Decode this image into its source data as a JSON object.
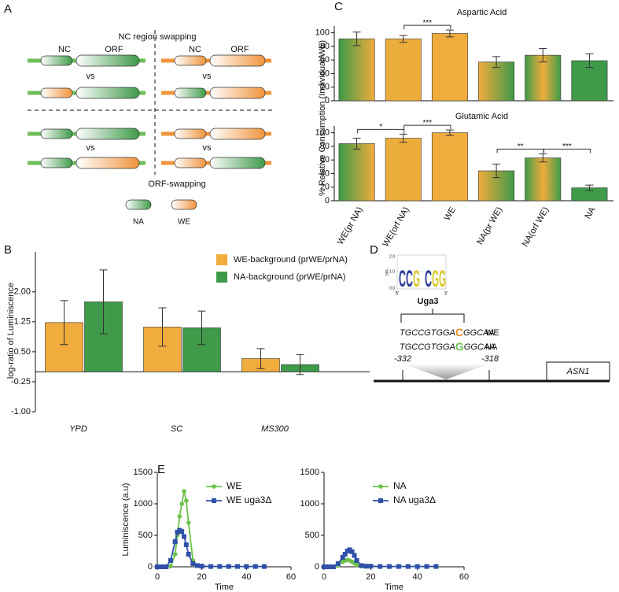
{
  "panel_labels": [
    "A",
    "B",
    "C",
    "D",
    "E"
  ],
  "diagram_a": {
    "top_title": "NC region swapping",
    "part_labels": [
      "NC",
      "ORF",
      "NC",
      "ORF"
    ],
    "vs": [
      "vs",
      "vs",
      "vs",
      "vs"
    ],
    "bottom_title": "ORF-swapping",
    "legend": [
      "NA",
      "WE"
    ]
  },
  "chart_data": [
    {
      "type": "bar",
      "ylabel": "log-ratio of Luminiscence",
      "categories": [
        "YPD",
        "SC",
        "MS300"
      ],
      "series": [
        {
          "name": "WE-background (prWE/prNA)",
          "color": "#f0ac3c",
          "values": [
            1.23,
            1.12,
            0.33
          ],
          "errors": [
            0.55,
            0.48,
            0.25
          ]
        },
        {
          "name": "NA-background (prWE/prNA)",
          "color": "#3f9a49",
          "values": [
            1.75,
            1.1,
            0.18
          ],
          "errors": [
            0.8,
            0.42,
            0.25
          ]
        }
      ],
      "ylim": [
        -1,
        3
      ],
      "yticks": [
        {
          "value": -1,
          "label": "-1.00"
        },
        {
          "value": -0.25,
          "label": "-0.25"
        },
        {
          "value": 0.5,
          "label": "0.50"
        },
        {
          "value": 1.25,
          "label": "1.25"
        },
        {
          "value": 2,
          "label": "2.00"
        }
      ]
    },
    {
      "type": "bar",
      "title": "Aspartic Acid",
      "ylabel": "% Relative Consumption (Individual/WE)",
      "values": [
        91,
        91,
        99,
        57,
        67,
        59
      ],
      "errors": [
        10,
        5,
        5,
        8,
        10,
        10
      ],
      "bar_colors": [
        [
          "#3f9a49",
          "#f0ac3c"
        ],
        [
          "#e9ad3c",
          "#f0ac3c"
        ],
        [
          "#f0ac3c",
          "#f0ac3c"
        ],
        [
          "#f0ac3c",
          "#3f9a49"
        ],
        [
          "#3f9a49",
          "#f0ac3c",
          "#3f9a49"
        ],
        [
          "#3f9a49",
          "#3f9a49"
        ]
      ],
      "significance": [
        null,
        "***",
        null,
        null,
        null
      ],
      "ylim": [
        0,
        110
      ],
      "yticks": [
        0,
        20,
        40,
        60,
        80,
        100
      ]
    },
    {
      "type": "bar",
      "title": "Glutamic Acid",
      "categories": [
        "WE(pr NA)",
        "WE(orf NA)",
        "WE",
        "NA(pr WE)",
        "NA(orf WE)",
        "NA"
      ],
      "values": [
        84,
        92,
        100,
        44,
        63,
        19
      ],
      "errors": [
        8,
        6,
        4,
        10,
        6,
        4
      ],
      "bar_colors": [
        [
          "#3f9a49",
          "#f0ac3c"
        ],
        [
          "#e9ad3c",
          "#f0ac3c"
        ],
        [
          "#f0ac3c",
          "#f0ac3c"
        ],
        [
          "#f0ac3c",
          "#3f9a49"
        ],
        [
          "#3f9a49",
          "#f0ac3c",
          "#3f9a49"
        ],
        [
          "#3f9a49",
          "#3f9a49"
        ]
      ],
      "significance": [
        "*",
        "***",
        null,
        "**",
        "***"
      ],
      "ylim": [
        0,
        110
      ],
      "yticks": [
        0,
        20,
        40,
        60,
        80,
        100
      ]
    },
    {
      "type": "line",
      "xlabel": "Time",
      "ylabel": "Luminiscence (a.u)",
      "x": [
        0,
        2,
        4,
        6,
        8,
        9,
        10,
        11,
        12,
        13,
        14,
        16,
        18,
        20,
        24,
        28,
        32,
        36,
        40,
        44,
        48
      ],
      "series": [
        {
          "name": "WE",
          "color": "#6cc24a",
          "marker": "circle",
          "values": [
            0,
            0,
            0,
            10,
            200,
            500,
            800,
            1000,
            1200,
            1050,
            700,
            100,
            20,
            10,
            5,
            5,
            5,
            5,
            5,
            5,
            5
          ]
        },
        {
          "name": "WE uga3Δ",
          "color": "#2f4fa8",
          "marker": "square",
          "values": [
            0,
            0,
            0,
            100,
            400,
            550,
            580,
            560,
            480,
            350,
            200,
            50,
            20,
            10,
            5,
            5,
            5,
            5,
            5,
            5,
            5
          ]
        }
      ],
      "xlim": [
        0,
        60
      ],
      "xticks": [
        0,
        20,
        40,
        60
      ],
      "ylim": [
        0,
        1500
      ],
      "yticks": [
        0,
        500,
        1000,
        1500
      ]
    },
    {
      "type": "line",
      "xlabel": "Time",
      "x": [
        0,
        2,
        4,
        6,
        8,
        9,
        10,
        11,
        12,
        13,
        14,
        16,
        18,
        20,
        24,
        28,
        32,
        36,
        40,
        44,
        48
      ],
      "series": [
        {
          "name": "NA",
          "color": "#6cc24a",
          "marker": "circle",
          "values": [
            0,
            0,
            0,
            20,
            80,
            100,
            110,
            100,
            80,
            60,
            30,
            10,
            5,
            5,
            5,
            5,
            5,
            5,
            5,
            5,
            5
          ]
        },
        {
          "name": "NA uga3Δ",
          "color": "#2f4fa8",
          "marker": "square",
          "values": [
            0,
            0,
            0,
            50,
            150,
            200,
            250,
            270,
            240,
            180,
            100,
            20,
            10,
            10,
            5,
            5,
            5,
            5,
            5,
            5,
            5
          ]
        }
      ],
      "xlim": [
        0,
        60
      ],
      "xticks": [
        0,
        20,
        40,
        60
      ],
      "ylim": [
        0,
        1500
      ],
      "yticks": [
        0,
        500,
        1000,
        1500
      ]
    }
  ],
  "diagram_d": {
    "logo_axis": [
      "2.0",
      "1.0",
      "0.0"
    ],
    "logo_unit": "bits",
    "logo_ends": [
      "5'",
      "3'"
    ],
    "logo_letters": [
      "C",
      "C",
      "G",
      "C",
      "G",
      "G"
    ],
    "motif": "Uga3",
    "sequences": [
      {
        "prefix": "TGCCGTGGA",
        "variant": "C",
        "suffix": "GGCAA",
        "strain": "WE"
      },
      {
        "prefix": "TGCCGTGGA",
        "variant": "G",
        "suffix": "GGCAA",
        "strain": "NA"
      }
    ],
    "positions": [
      "-332",
      "-318"
    ],
    "gene": "ASN1"
  }
}
